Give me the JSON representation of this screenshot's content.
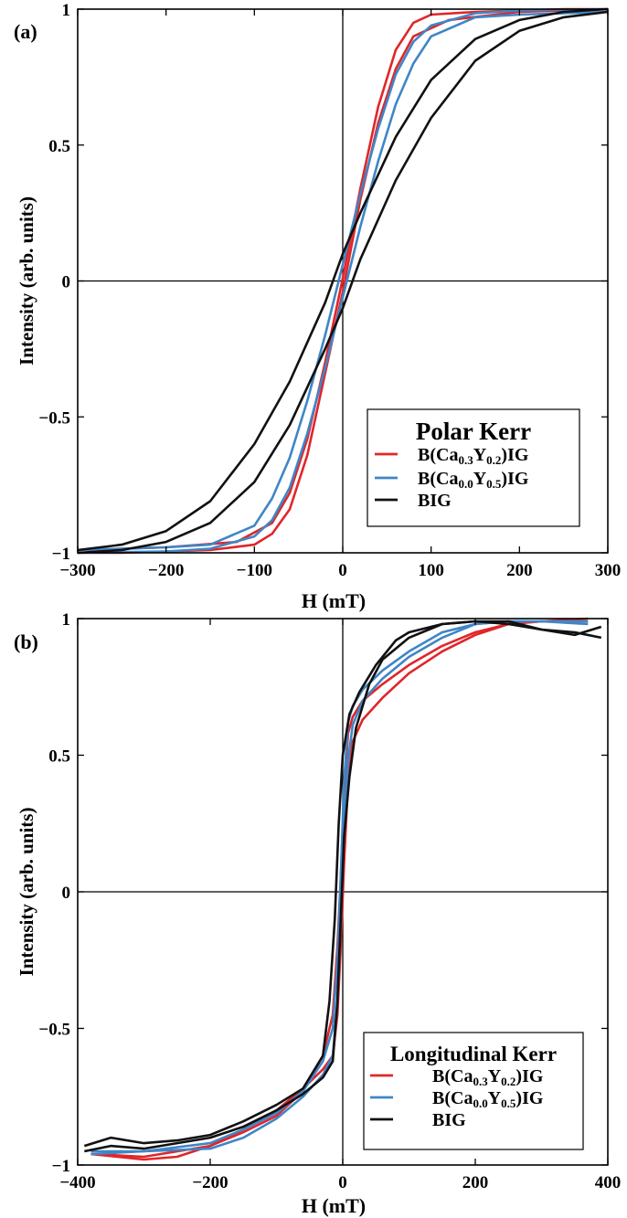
{
  "chart_data": [
    {
      "type": "line",
      "panel_label": "(a)",
      "title": "",
      "xlabel": "H (mT)",
      "ylabel": "Intensity (arb. units)",
      "xlim": [
        -300,
        300
      ],
      "ylim": [
        -1,
        1
      ],
      "xticks": [
        -300,
        -200,
        -100,
        0,
        100,
        200,
        300
      ],
      "yticks": [
        -1,
        -0.5,
        0,
        0.5,
        1
      ],
      "xtick_labels": [
        "−300",
        "−200",
        "−100",
        "0",
        "100",
        "200",
        "300"
      ],
      "ytick_labels": [
        "−1",
        "−0.5",
        "0",
        "0.5",
        "1"
      ],
      "grid": false,
      "zero_lines": true,
      "legend": {
        "title": "Polar Kerr",
        "placement": "bottom-right",
        "entries": [
          {
            "base": "B(Ca",
            "s1": "0.3",
            "mid": "Y",
            "s2": "0.2",
            "tail": ")IG",
            "color": "#e0262a"
          },
          {
            "base": "B(Ca",
            "s1": "0.0",
            "mid": "Y",
            "s2": "0.5",
            "tail": ")IG",
            "color": "#3f86c6"
          },
          {
            "base": "BIG",
            "s1": "",
            "mid": "",
            "s2": "",
            "tail": "",
            "color": "#111111"
          }
        ]
      },
      "series": [
        {
          "name": "B(Ca0.3Y0.2)IG",
          "color": "#e0262a",
          "upper": {
            "x": [
              -300,
              -200,
              -120,
              -80,
              -60,
              -40,
              -20,
              0,
              20,
              40,
              60,
              80,
              100,
              150,
              200,
              250,
              300
            ],
            "y": [
              -0.99,
              -0.98,
              -0.96,
              -0.89,
              -0.78,
              -0.58,
              -0.3,
              0.01,
              0.34,
              0.64,
              0.85,
              0.95,
              0.98,
              0.99,
              0.995,
              1.0,
              1.0
            ]
          },
          "lower": {
            "x": [
              -300,
              -250,
              -200,
              -150,
              -100,
              -80,
              -60,
              -40,
              -20,
              0,
              20,
              40,
              60,
              80,
              120,
              200,
              300
            ],
            "y": [
              -1.0,
              -1.0,
              -0.995,
              -0.99,
              -0.97,
              -0.93,
              -0.84,
              -0.64,
              -0.34,
              -0.04,
              0.3,
              0.58,
              0.78,
              0.9,
              0.96,
              0.99,
              1.0
            ]
          }
        },
        {
          "name": "B(Ca0.0Y0.5)IG",
          "color": "#3f86c6",
          "upper": {
            "x": [
              -300,
              -200,
              -150,
              -100,
              -80,
              -60,
              -40,
              -20,
              0,
              20,
              40,
              60,
              80,
              100,
              150,
              200,
              300
            ],
            "y": [
              -0.99,
              -0.98,
              -0.97,
              -0.9,
              -0.8,
              -0.65,
              -0.44,
              -0.2,
              0.06,
              0.32,
              0.56,
              0.76,
              0.88,
              0.94,
              0.985,
              0.995,
              1.0
            ]
          },
          "lower": {
            "x": [
              -300,
              -200,
              -150,
              -100,
              -80,
              -60,
              -40,
              -20,
              0,
              20,
              40,
              60,
              80,
              100,
              150,
              200,
              300
            ],
            "y": [
              -1.0,
              -0.995,
              -0.985,
              -0.94,
              -0.88,
              -0.76,
              -0.56,
              -0.32,
              -0.06,
              0.2,
              0.44,
              0.65,
              0.8,
              0.9,
              0.97,
              0.98,
              0.99
            ]
          }
        },
        {
          "name": "BIG",
          "color": "#111111",
          "upper": {
            "x": [
              -300,
              -250,
              -200,
              -150,
              -100,
              -60,
              -20,
              0,
              20,
              60,
              100,
              150,
              200,
              250,
              300
            ],
            "y": [
              -0.99,
              -0.97,
              -0.92,
              -0.81,
              -0.6,
              -0.37,
              -0.08,
              0.1,
              0.25,
              0.53,
              0.74,
              0.89,
              0.96,
              0.99,
              1.0
            ]
          },
          "lower": {
            "x": [
              -300,
              -250,
              -200,
              -150,
              -100,
              -60,
              -20,
              0,
              20,
              60,
              100,
              150,
              200,
              250,
              300
            ],
            "y": [
              -1.0,
              -0.99,
              -0.96,
              -0.89,
              -0.74,
              -0.53,
              -0.25,
              -0.1,
              0.08,
              0.37,
              0.6,
              0.81,
              0.92,
              0.97,
              0.99
            ]
          }
        }
      ]
    },
    {
      "type": "line",
      "panel_label": "(b)",
      "title": "",
      "xlabel": "H (mT)",
      "ylabel": "Intensity (arb. units)",
      "xlim": [
        -400,
        400
      ],
      "ylim": [
        -1,
        1
      ],
      "xticks": [
        -400,
        -200,
        0,
        200,
        400
      ],
      "yticks": [
        -1,
        -0.5,
        0,
        0.5,
        1
      ],
      "xtick_labels": [
        "−400",
        "−200",
        "0",
        "200",
        "400"
      ],
      "ytick_labels": [
        "−1",
        "−0.5",
        "0",
        "0.5",
        "1"
      ],
      "grid": false,
      "zero_lines": true,
      "legend": {
        "title": "Longitudinal Kerr",
        "placement": "bottom-right",
        "entries": [
          {
            "base": "B(Ca",
            "s1": "0.3",
            "mid": "Y",
            "s2": "0.2",
            "tail": ")IG",
            "color": "#e0262a"
          },
          {
            "base": "B(Ca",
            "s1": "0.0",
            "mid": "Y",
            "s2": "0.5",
            "tail": ")IG",
            "color": "#3f86c6"
          },
          {
            "base": "BIG",
            "s1": "",
            "mid": "",
            "s2": "",
            "tail": "",
            "color": "#111111"
          }
        ]
      },
      "series": [
        {
          "name": "B(Ca0.3Y0.2)IG",
          "color": "#e0262a",
          "upper": {
            "x": [
              -380,
              -300,
              -200,
              -150,
              -100,
              -60,
              -30,
              -15,
              -8,
              -3,
              2,
              8,
              15,
              30,
              60,
              100,
              150,
              200,
              250,
              300,
              370
            ],
            "y": [
              -0.96,
              -0.97,
              -0.93,
              -0.88,
              -0.82,
              -0.73,
              -0.6,
              -0.45,
              -0.2,
              0.05,
              0.35,
              0.58,
              0.64,
              0.7,
              0.76,
              0.83,
              0.9,
              0.95,
              0.98,
              0.99,
              0.99
            ]
          },
          "lower": {
            "x": [
              -380,
              -300,
              -250,
              -200,
              -150,
              -100,
              -60,
              -30,
              -15,
              -8,
              -3,
              2,
              8,
              15,
              30,
              60,
              100,
              150,
              200,
              250,
              300,
              370
            ],
            "y": [
              -0.96,
              -0.98,
              -0.97,
              -0.93,
              -0.87,
              -0.8,
              -0.72,
              -0.65,
              -0.6,
              -0.45,
              -0.2,
              0.1,
              0.4,
              0.55,
              0.63,
              0.71,
              0.8,
              0.88,
              0.94,
              0.98,
              0.99,
              1.0
            ]
          }
        },
        {
          "name": "B(Ca0.0Y0.5)IG",
          "color": "#3f86c6",
          "upper": {
            "x": [
              -380,
              -300,
              -200,
              -150,
              -100,
              -60,
              -30,
              -15,
              -8,
              -3,
              2,
              8,
              15,
              30,
              60,
              100,
              150,
              200,
              250,
              300,
              370
            ],
            "y": [
              -0.95,
              -0.95,
              -0.92,
              -0.87,
              -0.81,
              -0.73,
              -0.62,
              -0.5,
              -0.25,
              0.05,
              0.4,
              0.62,
              0.68,
              0.74,
              0.81,
              0.88,
              0.95,
              0.98,
              0.99,
              0.99,
              0.99
            ]
          },
          "lower": {
            "x": [
              -380,
              -300,
              -200,
              -150,
              -100,
              -60,
              -30,
              -15,
              -8,
              -3,
              2,
              8,
              15,
              30,
              60,
              100,
              150,
              200,
              250,
              300,
              370
            ],
            "y": [
              -0.96,
              -0.95,
              -0.94,
              -0.9,
              -0.83,
              -0.75,
              -0.67,
              -0.6,
              -0.4,
              -0.1,
              0.22,
              0.48,
              0.61,
              0.7,
              0.78,
              0.86,
              0.93,
              0.98,
              0.99,
              0.99,
              0.98
            ]
          }
        },
        {
          "name": "BIG",
          "color": "#111111",
          "upper": {
            "x": [
              -390,
              -350,
              -300,
              -250,
              -200,
              -150,
              -100,
              -60,
              -30,
              -20,
              -12,
              -6,
              0,
              10,
              25,
              50,
              80,
              100,
              150,
              200,
              250,
              300,
              350,
              390
            ],
            "y": [
              -0.93,
              -0.9,
              -0.92,
              -0.91,
              -0.89,
              -0.84,
              -0.78,
              -0.72,
              -0.6,
              -0.4,
              -0.1,
              0.25,
              0.5,
              0.65,
              0.73,
              0.83,
              0.92,
              0.95,
              0.98,
              0.99,
              0.99,
              0.96,
              0.94,
              0.97
            ]
          },
          "lower": {
            "x": [
              -390,
              -350,
              -300,
              -250,
              -200,
              -150,
              -100,
              -60,
              -30,
              -15,
              -8,
              -3,
              2,
              10,
              20,
              40,
              60,
              100,
              150,
              200,
              250,
              300,
              350,
              390
            ],
            "y": [
              -0.95,
              -0.93,
              -0.94,
              -0.92,
              -0.9,
              -0.86,
              -0.8,
              -0.74,
              -0.68,
              -0.62,
              -0.4,
              -0.1,
              0.2,
              0.42,
              0.6,
              0.76,
              0.85,
              0.93,
              0.98,
              0.99,
              0.98,
              0.96,
              0.95,
              0.93
            ]
          }
        }
      ]
    }
  ]
}
